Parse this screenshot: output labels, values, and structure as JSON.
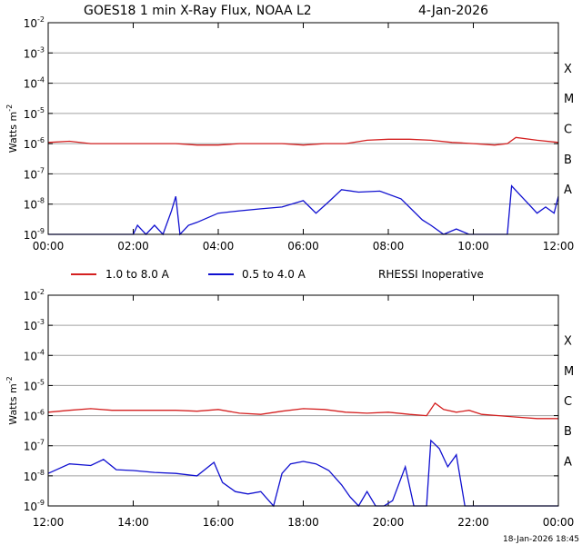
{
  "title_left": "GOES18 1 min X-Ray Flux, NOAA L2",
  "title_date": "4-Jan-2026",
  "ylabel": "Watts m",
  "ylabel_sup": "-2",
  "footer": "18-Jan-2026 18:45",
  "legend": {
    "long_label": "1.0 to 8.0 A",
    "short_label": "0.5 to 4.0 A",
    "note": "RHESSI Inoperative"
  },
  "colors": {
    "long": "#d42020",
    "short": "#1010d0",
    "grid": "#a0a0a0",
    "axis": "#000000"
  },
  "classes": [
    "X",
    "M",
    "C",
    "B",
    "A"
  ],
  "ytick_labels": [
    {
      "exp": -2,
      "text": "10",
      "sup": "-2"
    },
    {
      "exp": -3,
      "text": "10",
      "sup": "-3"
    },
    {
      "exp": -4,
      "text": "10",
      "sup": "-4"
    },
    {
      "exp": -5,
      "text": "10",
      "sup": "-5"
    },
    {
      "exp": -6,
      "text": "10",
      "sup": "-6"
    },
    {
      "exp": -7,
      "text": "10",
      "sup": "-7"
    },
    {
      "exp": -8,
      "text": "10",
      "sup": "-8"
    },
    {
      "exp": -9,
      "text": "10",
      "sup": "-9"
    }
  ],
  "chart_data": [
    {
      "type": "line",
      "panel": "top",
      "y_scale": "log",
      "ylim": [
        1e-09,
        0.01
      ],
      "xlim_hours": [
        0,
        12
      ],
      "xticks": [
        "00:00",
        "02:00",
        "04:00",
        "06:00",
        "08:00",
        "10:00",
        "12:00"
      ],
      "grid": true,
      "series": [
        {
          "name": "1.0 to 8.0 A",
          "x": [
            0,
            0.5,
            1,
            1.5,
            2,
            2.5,
            3,
            3.5,
            4,
            4.5,
            5,
            5.5,
            6,
            6.5,
            7,
            7.5,
            8,
            8.5,
            9,
            9.5,
            10,
            10.5,
            10.8,
            11,
            11.5,
            12
          ],
          "y": [
            1.1e-06,
            1.2e-06,
            1e-06,
            1e-06,
            1e-06,
            1e-06,
            1e-06,
            9e-07,
            9e-07,
            1e-06,
            1e-06,
            1e-06,
            9e-07,
            1e-06,
            1e-06,
            1.3e-06,
            1.4e-06,
            1.4e-06,
            1.3e-06,
            1.1e-06,
            1e-06,
            9e-07,
            1e-06,
            1.6e-06,
            1.3e-06,
            1.1e-06
          ]
        },
        {
          "name": "0.5 to 4.0 A",
          "x": [
            0,
            1,
            1.8,
            2.0,
            2.1,
            2.3,
            2.5,
            2.7,
            2.9,
            3.0,
            3.1,
            3.3,
            3.5,
            4.0,
            4.5,
            5.0,
            5.5,
            6.0,
            6.3,
            6.6,
            6.9,
            7.3,
            7.8,
            8.3,
            8.8,
            9.0,
            9.3,
            9.6,
            9.9,
            10.2,
            10.5,
            10.8,
            10.9,
            11.1,
            11.3,
            11.5,
            11.7,
            11.9,
            12
          ],
          "y": [
            1e-09,
            1e-09,
            1e-09,
            1e-09,
            2e-09,
            1e-09,
            2e-09,
            1e-09,
            6e-09,
            1.8e-08,
            1e-09,
            2e-09,
            2.5e-09,
            5e-09,
            6e-09,
            7e-09,
            8e-09,
            1.3e-08,
            5e-09,
            1.2e-08,
            3e-08,
            2.5e-08,
            2.7e-08,
            1.5e-08,
            3e-09,
            2e-09,
            1e-09,
            1.5e-09,
            1e-09,
            1e-09,
            1e-09,
            1e-09,
            4e-08,
            2e-08,
            1e-08,
            5e-09,
            8e-09,
            5e-09,
            1.8e-08
          ]
        }
      ]
    },
    {
      "type": "line",
      "panel": "bottom",
      "y_scale": "log",
      "ylim": [
        1e-09,
        0.01
      ],
      "xlim_hours": [
        12,
        24
      ],
      "xticks": [
        "12:00",
        "14:00",
        "16:00",
        "18:00",
        "20:00",
        "22:00",
        "00:00"
      ],
      "grid": true,
      "series": [
        {
          "name": "1.0 to 8.0 A",
          "x": [
            12,
            12.5,
            13,
            13.5,
            14,
            14.5,
            15,
            15.5,
            16,
            16.5,
            17,
            17.5,
            18,
            18.5,
            19,
            19.5,
            20,
            20.5,
            20.9,
            21.1,
            21.3,
            21.6,
            21.9,
            22.2,
            22.6,
            23,
            23.5,
            24
          ],
          "y": [
            1.3e-06,
            1.5e-06,
            1.7e-06,
            1.5e-06,
            1.5e-06,
            1.5e-06,
            1.5e-06,
            1.4e-06,
            1.6e-06,
            1.2e-06,
            1.1e-06,
            1.4e-06,
            1.7e-06,
            1.6e-06,
            1.3e-06,
            1.2e-06,
            1.3e-06,
            1.1e-06,
            1e-06,
            2.6e-06,
            1.6e-06,
            1.3e-06,
            1.5e-06,
            1.1e-06,
            1e-06,
            9e-07,
            8e-07,
            8e-07
          ]
        },
        {
          "name": "0.5 to 4.0 A",
          "x": [
            12,
            12.5,
            13,
            13.3,
            13.6,
            14,
            14.5,
            15,
            15.5,
            15.9,
            16.1,
            16.4,
            16.7,
            17,
            17.3,
            17.5,
            17.7,
            18,
            18.3,
            18.6,
            18.9,
            19.1,
            19.3,
            19.5,
            19.7,
            19.9,
            20.1,
            20.4,
            20.6,
            20.8,
            20.9,
            21,
            21.2,
            21.4,
            21.6,
            21.8,
            22,
            22.5,
            23,
            23.5,
            24
          ],
          "y": [
            1.2e-08,
            2.5e-08,
            2.2e-08,
            3.5e-08,
            1.6e-08,
            1.5e-08,
            1.3e-08,
            1.2e-08,
            1e-08,
            2.8e-08,
            6e-09,
            3e-09,
            2.5e-09,
            3e-09,
            1e-09,
            1.2e-08,
            2.5e-08,
            3e-08,
            2.5e-08,
            1.5e-08,
            5e-09,
            2e-09,
            1e-09,
            3e-09,
            1e-09,
            1e-09,
            1.5e-09,
            2e-08,
            1e-09,
            1e-09,
            1e-09,
            1.5e-07,
            8e-08,
            2e-08,
            5e-08,
            1e-09,
            1e-09,
            1e-09,
            1e-09,
            1e-09,
            1e-09
          ]
        }
      ]
    }
  ]
}
